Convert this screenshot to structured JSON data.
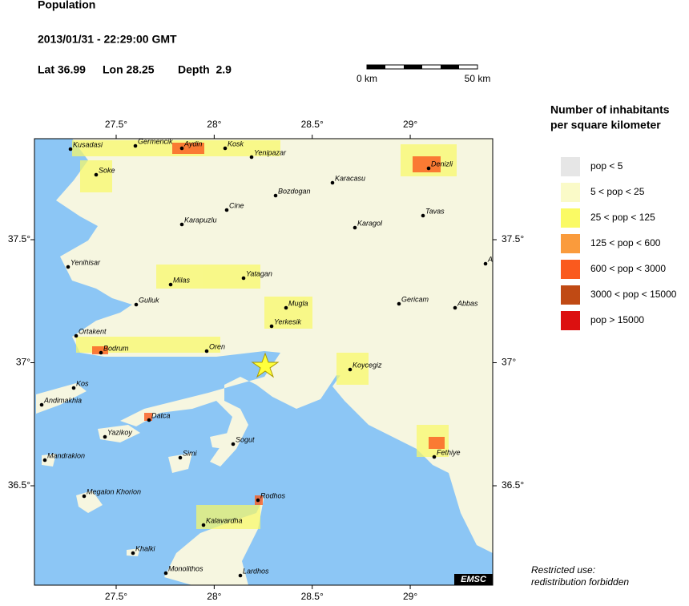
{
  "header": {
    "title": "Population",
    "datetime": "2013/01/31 - 22:29:00 GMT",
    "lat": "Lat 36.99",
    "lon": "Lon 28.25",
    "depth": "Depth  2.9"
  },
  "scale": {
    "start": "0 km",
    "end": "50 km"
  },
  "legend": {
    "title_line1": "Number of inhabitants",
    "title_line2": "per square kilometer",
    "items": [
      {
        "label": "pop < 5",
        "color": "#e6e6e6"
      },
      {
        "label": "5 < pop < 25",
        "color": "#fafac8"
      },
      {
        "label": "25 < pop < 125",
        "color": "#fafa64"
      },
      {
        "label": "125 < pop < 600",
        "color": "#fa9b3c"
      },
      {
        "label": "600 < pop < 3000",
        "color": "#fa5a1e"
      },
      {
        "label": "3000 < pop < 15000",
        "color": "#c04a14"
      },
      {
        "label": "pop > 15000",
        "color": "#dc1010"
      }
    ]
  },
  "lon_ticks": [
    {
      "value": 27.5,
      "label": "27.5°"
    },
    {
      "value": 28,
      "label": "28°"
    },
    {
      "value": 28.5,
      "label": "28.5°"
    },
    {
      "value": 29,
      "label": "29°"
    }
  ],
  "lat_ticks": [
    {
      "value": 37.5,
      "label": "37.5°"
    },
    {
      "value": 37,
      "label": "37°"
    },
    {
      "value": 36.5,
      "label": "36.5°"
    }
  ],
  "places": [
    "Kusadasi",
    "Germencik",
    "Aydin",
    "Kosk",
    "Yenipazar",
    "Soke",
    "Denizli",
    "Karacasu",
    "Bozdogan",
    "Cine",
    "Tavas",
    "Karapuzlu",
    "Karagol",
    "Yenihisar",
    "Milas",
    "Yatagan",
    "Gulluk",
    "Mugla",
    "Gericam",
    "Abbas",
    "Yerkesik",
    "Ortakent",
    "Bodrum",
    "Oren",
    "Koycegiz",
    "Kos",
    "Andimakhia",
    "Datca",
    "Yazikoy",
    "Sogut",
    "Simi",
    "Mandrakion",
    "Fethiye",
    "Megalon Khorion",
    "Rodhos",
    "Kalavardha",
    "Khalki",
    "Monolithos",
    "Lardhos",
    "A"
  ],
  "badge": "EMSC",
  "notice": {
    "line1": "Restricted use:",
    "line2": "redistribution forbidden"
  }
}
